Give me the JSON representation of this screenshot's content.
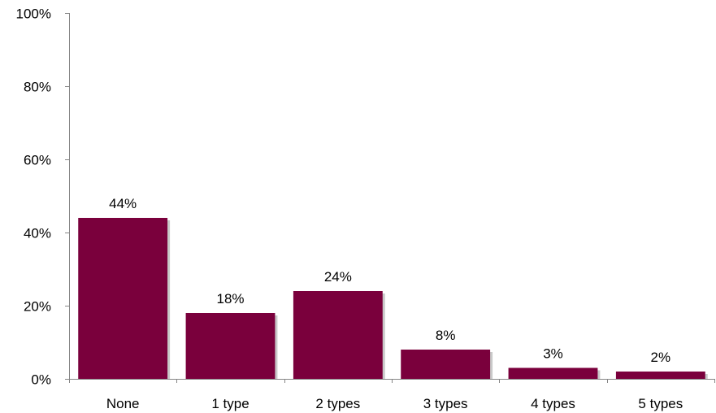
{
  "chart_data": {
    "type": "bar",
    "categories": [
      "None",
      "1 type",
      "2 types",
      "3 types",
      "4 types",
      "5 types"
    ],
    "values": [
      44,
      18,
      24,
      8,
      3,
      2
    ],
    "data_labels": [
      "44%",
      "18%",
      "24%",
      "8%",
      "3%",
      "2%"
    ],
    "ylim": [
      0,
      100
    ],
    "yticks": [
      0,
      20,
      40,
      60,
      80,
      100
    ],
    "ytick_labels": [
      "0%",
      "20%",
      "40%",
      "60%",
      "80%",
      "100%"
    ],
    "title": "",
    "xlabel": "",
    "ylabel": "",
    "grid": false,
    "legend": "none",
    "colors": {
      "bar": "#7a003c"
    }
  }
}
